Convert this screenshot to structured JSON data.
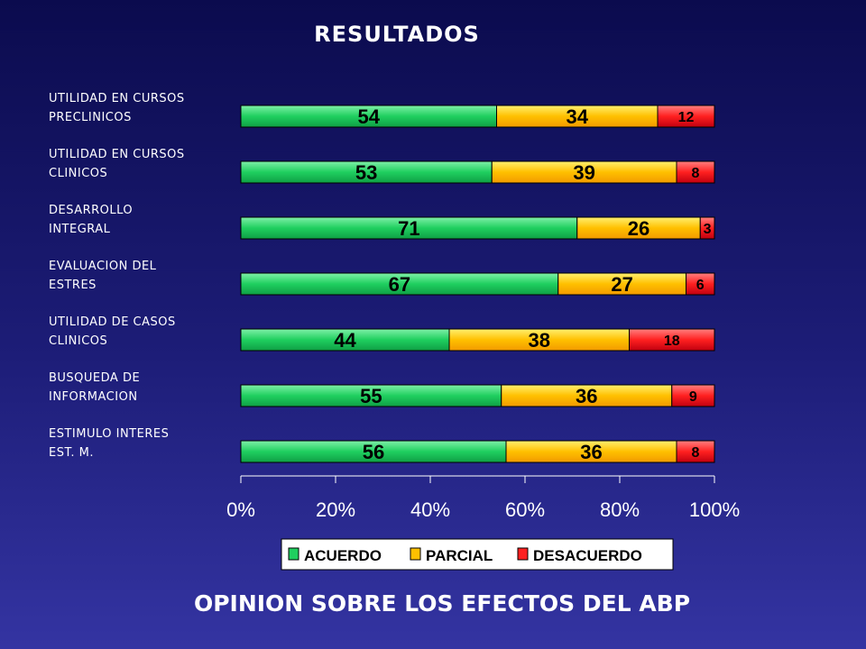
{
  "slide": {
    "title": "RESULTADOS",
    "footer": "OPINION SOBRE LOS EFECTOS DEL ABP"
  },
  "chart_data": {
    "type": "bar",
    "orientation": "horizontal",
    "stacked": "percent",
    "categories": [
      [
        "UTILIDAD EN CURSOS",
        "PRECLINICOS"
      ],
      [
        "UTILIDAD EN CURSOS",
        "CLINICOS"
      ],
      [
        "DESARROLLO",
        "INTEGRAL"
      ],
      [
        "EVALUACION DEL",
        "ESTRES"
      ],
      [
        "UTILIDAD DE CASOS",
        "CLINICOS"
      ],
      [
        "BUSQUEDA DE",
        "INFORMACION"
      ],
      [
        "ESTIMULO INTERES",
        "EST.  M."
      ]
    ],
    "series": [
      {
        "name": "ACUERDO",
        "color": "#1fcf5f",
        "values": [
          54,
          53,
          71,
          67,
          44,
          55,
          56
        ]
      },
      {
        "name": "PARCIAL",
        "color": "#ffc000",
        "values": [
          34,
          39,
          26,
          27,
          38,
          36,
          36
        ]
      },
      {
        "name": "DESACUERDO",
        "color": "#ff2020",
        "values": [
          12,
          8,
          3,
          6,
          18,
          9,
          8
        ]
      }
    ],
    "xticks": [
      "0%",
      "20%",
      "40%",
      "60%",
      "80%",
      "100%"
    ],
    "xlim": [
      0,
      100
    ],
    "legend": "bottom",
    "grid": false
  }
}
